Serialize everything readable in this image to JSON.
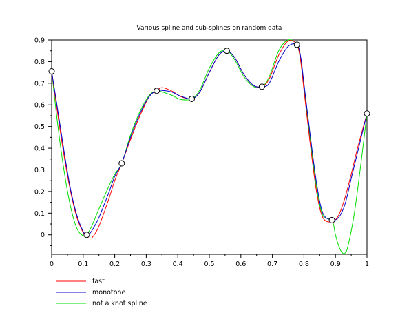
{
  "chart_data": {
    "type": "line",
    "title": "Various spline and sub-splines on random data",
    "xlabel": "",
    "ylabel": "",
    "xlim": [
      0,
      1
    ],
    "ylim": [
      -0.09,
      0.9
    ],
    "x_ticks": [
      "0",
      "0.1",
      "0.2",
      "0.3",
      "0.4",
      "0.5",
      "0.6",
      "0.7",
      "0.8",
      "0.9",
      "1"
    ],
    "y_ticks": [
      "0",
      "0.1",
      "0.2",
      "0.3",
      "0.4",
      "0.5",
      "0.6",
      "0.7",
      "0.8",
      "0.9"
    ],
    "grid": false,
    "legend_position": "bottom-left",
    "data_points": {
      "x": [
        0,
        0.1111,
        0.2222,
        0.3333,
        0.4444,
        0.5556,
        0.6667,
        0.7778,
        0.8889,
        1.0
      ],
      "y": [
        0.755,
        0.0,
        0.33,
        0.665,
        0.628,
        0.85,
        0.684,
        0.878,
        0.068,
        0.56
      ]
    },
    "series": [
      {
        "name": "fast",
        "color": "#ff0000",
        "x": [
          0,
          0.02,
          0.04,
          0.06,
          0.08,
          0.1,
          0.1111,
          0.12,
          0.13,
          0.15,
          0.18,
          0.2,
          0.2222,
          0.25,
          0.28,
          0.31,
          0.3333,
          0.35,
          0.38,
          0.41,
          0.4444,
          0.47,
          0.5,
          0.53,
          0.5556,
          0.58,
          0.61,
          0.64,
          0.6667,
          0.69,
          0.72,
          0.75,
          0.7778,
          0.79,
          0.8,
          0.82,
          0.84,
          0.86,
          0.8889,
          0.91,
          0.93,
          0.95,
          0.97,
          1.0
        ],
        "y": [
          0.755,
          0.55,
          0.36,
          0.2,
          0.08,
          0.01,
          -0.01,
          -0.015,
          -0.01,
          0.04,
          0.16,
          0.25,
          0.33,
          0.44,
          0.55,
          0.64,
          0.665,
          0.68,
          0.665,
          0.638,
          0.628,
          0.66,
          0.75,
          0.83,
          0.85,
          0.82,
          0.74,
          0.69,
          0.684,
          0.72,
          0.83,
          0.895,
          0.878,
          0.8,
          0.67,
          0.42,
          0.2,
          0.08,
          0.06,
          0.09,
          0.17,
          0.28,
          0.4,
          0.56
        ]
      },
      {
        "name": "monotone",
        "color": "#0000cc",
        "x": [
          0,
          0.02,
          0.04,
          0.06,
          0.08,
          0.1,
          0.1111,
          0.12,
          0.13,
          0.15,
          0.18,
          0.2,
          0.2222,
          0.25,
          0.28,
          0.31,
          0.3333,
          0.35,
          0.38,
          0.41,
          0.4444,
          0.47,
          0.5,
          0.53,
          0.5556,
          0.58,
          0.61,
          0.64,
          0.6667,
          0.69,
          0.72,
          0.75,
          0.7778,
          0.79,
          0.8,
          0.82,
          0.84,
          0.86,
          0.8889,
          0.91,
          0.93,
          0.95,
          0.97,
          1.0
        ],
        "y": [
          0.755,
          0.57,
          0.38,
          0.21,
          0.09,
          0.015,
          0.0,
          0.005,
          0.025,
          0.08,
          0.19,
          0.27,
          0.33,
          0.45,
          0.56,
          0.64,
          0.665,
          0.667,
          0.66,
          0.64,
          0.628,
          0.66,
          0.75,
          0.83,
          0.85,
          0.82,
          0.74,
          0.69,
          0.684,
          0.7,
          0.8,
          0.87,
          0.878,
          0.82,
          0.7,
          0.46,
          0.24,
          0.1,
          0.068,
          0.08,
          0.14,
          0.26,
          0.38,
          0.56
        ]
      },
      {
        "name": "not a knot spline",
        "color": "#00dd00",
        "x": [
          0,
          0.02,
          0.04,
          0.06,
          0.08,
          0.1,
          0.1111,
          0.12,
          0.13,
          0.15,
          0.18,
          0.2,
          0.2222,
          0.25,
          0.28,
          0.31,
          0.3333,
          0.35,
          0.38,
          0.41,
          0.4444,
          0.47,
          0.5,
          0.53,
          0.5556,
          0.58,
          0.61,
          0.64,
          0.6667,
          0.69,
          0.72,
          0.75,
          0.7778,
          0.79,
          0.8,
          0.82,
          0.84,
          0.86,
          0.8889,
          0.9,
          0.91,
          0.92,
          0.93,
          0.94,
          0.96,
          0.98,
          1.0
        ],
        "y": [
          0.755,
          0.5,
          0.29,
          0.13,
          0.03,
          -0.005,
          0.0,
          0.02,
          0.05,
          0.12,
          0.22,
          0.28,
          0.33,
          0.46,
          0.57,
          0.645,
          0.665,
          0.66,
          0.645,
          0.625,
          0.628,
          0.67,
          0.77,
          0.84,
          0.85,
          0.81,
          0.73,
          0.685,
          0.684,
          0.73,
          0.85,
          0.9,
          0.878,
          0.8,
          0.68,
          0.44,
          0.22,
          0.09,
          0.068,
          0.0,
          -0.05,
          -0.08,
          -0.085,
          -0.05,
          0.1,
          0.32,
          0.56
        ]
      }
    ]
  }
}
